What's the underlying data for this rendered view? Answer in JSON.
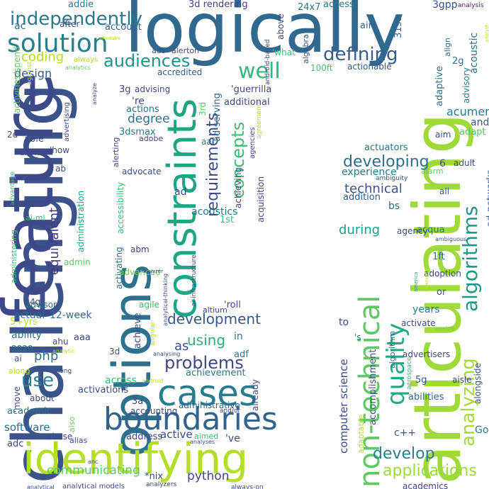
{
  "palette": {
    "dark_purple": "#440154",
    "indigo": "#46327e",
    "blue": "#365c8d",
    "teal_blue": "#277f8e",
    "teal": "#1fa187",
    "green": "#4ac16d",
    "lime": "#a0da39",
    "yellow": "#fde725"
  },
  "words": [
    {
      "text": "logically",
      "color": "#31688e"
    },
    {
      "text": "challenging",
      "color": "#3b528b"
    },
    {
      "text": "options",
      "color": "#2c728e"
    },
    {
      "text": "feature",
      "color": "#3e4989"
    },
    {
      "text": "articulating",
      "color": "#a0da39"
    },
    {
      "text": "constraints",
      "color": "#20a486"
    },
    {
      "text": "identifying",
      "color": "#b5de2b"
    },
    {
      "text": "cases",
      "color": "#287c8e"
    },
    {
      "text": "boundaries",
      "color": "#33638d"
    },
    {
      "text": "non-technical",
      "color": "#5ec962"
    },
    {
      "text": "quality",
      "color": "#22a884"
    },
    {
      "text": "algorithms",
      "color": "#1f968b"
    },
    {
      "text": "solution",
      "color": "#277f8e"
    },
    {
      "text": "independently",
      "color": "#2a788e"
    },
    {
      "text": "audiences",
      "color": "#21918c"
    },
    {
      "text": "defining",
      "color": "#365c8d"
    },
    {
      "text": "well",
      "color": "#35b779"
    },
    {
      "text": "requirements",
      "color": "#3e4a89"
    },
    {
      "text": "concepts",
      "color": "#3dbc74"
    },
    {
      "text": "problems",
      "color": "#404688"
    },
    {
      "text": "develop",
      "color": "#277f8e"
    },
    {
      "text": "analyzing",
      "color": "#a5db36"
    },
    {
      "text": "applications",
      "color": "#9bd93c"
    },
    {
      "text": "use",
      "color": "#25838e"
    },
    {
      "text": "developing",
      "color": "#2d708e"
    },
    {
      "text": "development",
      "color": "#38588c"
    },
    {
      "text": "technical",
      "color": "#3b528b"
    },
    {
      "text": "coding",
      "color": "#bddf26"
    },
    {
      "text": "design",
      "color": "#355f8d"
    },
    {
      "text": "equivalent",
      "color": "#443a83"
    },
    {
      "text": "communicating",
      "color": "#5ec962"
    },
    {
      "text": "python",
      "color": "#3e4989"
    },
    {
      "text": "software",
      "color": "#2f6c8e"
    },
    {
      "text": "php",
      "color": "#2c728e"
    },
    {
      "text": "using",
      "color": "#29af7f"
    },
    {
      "text": "degree",
      "color": "#2f6c8e"
    },
    {
      "text": "during",
      "color": "#1f9a8a"
    },
    {
      "text": "experience",
      "color": "#2a788e"
    },
    {
      "text": "computer science",
      "color": "#3e4a89"
    },
    {
      "text": "addie",
      "color": "#287d8e"
    },
    {
      "text": "coding",
      "color": "#bddf26"
    },
    {
      "text": "3d rendering",
      "color": "#414487"
    },
    {
      "text": "access",
      "color": "#2a788e"
    },
    {
      "text": "24x7",
      "color": "#2c728e"
    },
    {
      "text": "3gpp",
      "color": "#3b528b"
    },
    {
      "text": "analysis",
      "color": "#482878"
    },
    {
      "text": "ac",
      "color": "#31688e"
    },
    {
      "text": "after",
      "color": "#3e4989"
    },
    {
      "text": "account",
      "color": "#33638d"
    },
    {
      "text": "above",
      "color": "#3e4989"
    },
    {
      "text": "air",
      "color": "#2d708e"
    },
    {
      "text": "31st",
      "color": "#33638d"
    },
    {
      "text": "acoustic",
      "color": "#2c728e"
    },
    {
      "text": "accredited",
      "color": "#375a8c"
    },
    {
      "text": "ads",
      "color": "#3b528b"
    },
    {
      "text": "alerton",
      "color": "#3e4989"
    },
    {
      "text": "'what",
      "color": "#3dbc74"
    },
    {
      "text": "100ft",
      "color": "#4ac16d"
    },
    {
      "text": "actionable",
      "color": "#3a548c"
    },
    {
      "text": "2g",
      "color": "#2d708e"
    },
    {
      "text": "align",
      "color": "#2c728e"
    },
    {
      "text": "adaptive",
      "color": "#2d708e"
    },
    {
      "text": "advisory",
      "color": "#287c8e"
    },
    {
      "text": "acumen",
      "color": "#2a788e"
    },
    {
      "text": "and",
      "color": "#375a8c"
    },
    {
      "text": "adapt",
      "color": "#52c569"
    },
    {
      "text": "aim",
      "color": "#3e4989"
    },
    {
      "text": "adult",
      "color": "#3e4989"
    },
    {
      "text": "6",
      "color": "#3b528b"
    },
    {
      "text": "alarm",
      "color": "#5ec962"
    },
    {
      "text": "ambiguity",
      "color": "#3b528b"
    },
    {
      "text": "all",
      "color": "#3b528b"
    },
    {
      "text": "ad-networks",
      "color": "#3a548c"
    },
    {
      "text": "acqua",
      "color": "#2a788e"
    },
    {
      "text": "ambiguous",
      "color": "#3b528b"
    },
    {
      "text": "activities",
      "color": "#5ec962"
    },
    {
      "text": "1ft",
      "color": "#2c728e"
    },
    {
      "text": "adoption",
      "color": "#3e4989"
    },
    {
      "text": "or",
      "color": "#3b528b"
    },
    {
      "text": "america",
      "color": "#20a486"
    },
    {
      "text": "activate",
      "color": "#3e4989"
    },
    {
      "text": "analog",
      "color": "#6ece58"
    },
    {
      "text": "years",
      "color": "#2a788e"
    },
    {
      "text": "advertisers",
      "color": "#3e4989"
    },
    {
      "text": "5g",
      "color": "#3b528b"
    },
    {
      "text": "aisle",
      "color": "#414487"
    },
    {
      "text": "alongside",
      "color": "#3b528b"
    },
    {
      "text": "abilities",
      "color": "#31688e"
    },
    {
      "text": "Go",
      "color": "#2a788e"
    },
    {
      "text": "aerospace",
      "color": "#3dbc74"
    },
    {
      "text": "adaptable",
      "color": "#b5de2b"
    },
    {
      "text": "accomplishment",
      "color": "#3b528b"
    },
    {
      "text": "algorithm",
      "color": "#2c728e"
    },
    {
      "text": "c++",
      "color": "#3b528b"
    },
    {
      "text": "academics",
      "color": "#414487"
    },
    {
      "text": "'s",
      "color": "#2a788e"
    },
    {
      "text": "to",
      "color": "#3e4989"
    },
    {
      "text": "bs",
      "color": "#31688e"
    },
    {
      "text": "agency",
      "color": "#3e4989"
    },
    {
      "text": "addition",
      "color": "#365c8d"
    },
    {
      "text": "actuators",
      "color": "#2d708e"
    },
    {
      "text": "acquisition",
      "color": "#3e4989"
    },
    {
      "text": "agreements",
      "color": "#b5de2b"
    },
    {
      "text": "agencies",
      "color": "#3e4989"
    },
    {
      "text": "android-based",
      "color": "#3e4989"
    },
    {
      "text": "algebra",
      "color": "#3b528b"
    },
    {
      "text": "'guerrilla",
      "color": "#3e4989"
    },
    {
      "text": "additional",
      "color": "#3e4989"
    },
    {
      "text": "ad-serving",
      "color": "#31688e"
    },
    {
      "text": "3rd",
      "color": "#5ec962"
    },
    {
      "text": "acoustics",
      "color": "#2a788e"
    },
    {
      "text": "1st",
      "color": "#3dbc74"
    },
    {
      "text": "aac",
      "color": "#2a788e"
    },
    {
      "text": "achieving",
      "color": "#3e4989"
    },
    {
      "text": "altium",
      "color": "#3e4989"
    },
    {
      "text": "'roll",
      "color": "#3e4989"
    },
    {
      "text": "in",
      "color": "#2a788e"
    },
    {
      "text": "adf",
      "color": "#2c728e"
    },
    {
      "text": "as",
      "color": "#3b528b"
    },
    {
      "text": "already",
      "color": "#3e4989"
    },
    {
      "text": "achievement",
      "color": "#2a788e"
    },
    {
      "text": "administrative",
      "color": "#31688e"
    },
    {
      "text": "and/or",
      "color": "#3e4989"
    },
    {
      "text": "aimed",
      "color": "#3dbc74"
    },
    {
      "text": "analyses",
      "color": "#3e4989"
    },
    {
      "text": "always-on",
      "color": "#3e4989"
    },
    {
      "text": "'ve",
      "color": "#3e4989"
    },
    {
      "text": "ai-infrastructure",
      "color": "#3e4989"
    },
    {
      "text": "analytical-thinking",
      "color": "#3e4989"
    },
    {
      "text": "'re",
      "color": "#3e4989"
    },
    {
      "text": "3g",
      "color": "#3e4989"
    },
    {
      "text": "advising",
      "color": "#3e4989"
    },
    {
      "text": "actions",
      "color": "#2c728e"
    },
    {
      "text": "adobe",
      "color": "#3e4989"
    },
    {
      "text": "alerting",
      "color": "#3e4989"
    },
    {
      "text": "3dsmax",
      "color": "#2a788e"
    },
    {
      "text": "advocate",
      "color": "#3e4989"
    },
    {
      "text": "ad",
      "color": "#3e4989"
    },
    {
      "text": "abm",
      "color": "#3e4989"
    },
    {
      "text": "activating",
      "color": "#2c728e"
    },
    {
      "text": "accessibility",
      "color": "#3dbc74"
    },
    {
      "text": "administration",
      "color": "#20a486"
    },
    {
      "text": "advanced",
      "color": "#6ece58"
    },
    {
      "text": "admin",
      "color": "#5ec962"
    },
    {
      "text": "agile",
      "color": "#3dbc74"
    },
    {
      "text": "achieve",
      "color": "#3e4989"
    },
    {
      "text": "advisor",
      "color": "#2c728e"
    },
    {
      "text": "12-week",
      "color": "#2c728e"
    },
    {
      "text": "actual",
      "color": "#2c728e"
    },
    {
      "text": "4g",
      "color": "#3e4989"
    },
    {
      "text": "5+yrs",
      "color": "#b5de2b"
    },
    {
      "text": "ability",
      "color": "#2c728e"
    },
    {
      "text": "aaa",
      "color": "#3e4989"
    },
    {
      "text": "ahu",
      "color": "#3e4989"
    },
    {
      "text": "2020",
      "color": "#2c728e"
    },
    {
      "text": "analytic",
      "color": "#b5de2b"
    },
    {
      "text": "ai",
      "color": "#3e4989"
    },
    {
      "text": "along",
      "color": "#b5de2b"
    },
    {
      "text": "'move",
      "color": "#3e4989"
    },
    {
      "text": "about",
      "color": "#3e4989"
    },
    {
      "text": "academic",
      "color": "#2c728e"
    },
    {
      "text": "abuse",
      "color": "#3e4989"
    },
    {
      "text": "alias",
      "color": "#3e4989"
    },
    {
      "text": "adc",
      "color": "#3e4989"
    },
    {
      "text": "analytical",
      "color": "#3e4989"
    },
    {
      "text": "analytical models",
      "color": "#3e4989"
    },
    {
      "text": "angular",
      "color": "#b5de2b"
    },
    {
      "text": "analysing",
      "color": "#3e4989"
    },
    {
      "text": "among",
      "color": "#3e4989"
    },
    {
      "text": "also",
      "color": "#6ece58"
    },
    {
      "text": "anc",
      "color": "#3e4989"
    },
    {
      "text": "analyzers",
      "color": "#3e4989"
    },
    {
      "text": "*nix",
      "color": "#3e4989"
    },
    {
      "text": "accounting",
      "color": "#3e4989"
    },
    {
      "text": "address",
      "color": "#3e4989"
    },
    {
      "text": "active",
      "color": "#3e4989"
    },
    {
      "text": "3a",
      "color": "#3e4989"
    },
    {
      "text": "across",
      "color": "#3dbc74"
    },
    {
      "text": "activations",
      "color": "#3e4989"
    },
    {
      "text": "3d",
      "color": "#3e4989"
    },
    {
      "text": "android",
      "color": "#b5de2b"
    },
    {
      "text": "allows",
      "color": "#3e4989"
    },
    {
      "text": "able",
      "color": "#3e4989"
    },
    {
      "text": "2d",
      "color": "#3e4989"
    },
    {
      "text": "advantage",
      "color": "#3dbc74"
    },
    {
      "text": "'how",
      "color": "#3e4989"
    },
    {
      "text": "ab",
      "color": "#3e4989"
    },
    {
      "text": "ai-ml",
      "color": "#3dbc74"
    },
    {
      "text": "administering",
      "color": "#3dbc74"
    },
    {
      "text": "advertising",
      "color": "#3e4989"
    },
    {
      "text": "a",
      "color": "#3e4989"
    },
    {
      "text": "analyze",
      "color": "#3e4989"
    },
    {
      "text": "against",
      "color": "#b5de2b"
    },
    {
      "text": "activities/spend",
      "color": "#5ec962"
    },
    {
      "text": "analytics",
      "color": "#5ec962"
    },
    {
      "text": "always",
      "color": "#b5de2b"
    },
    {
      "text": "analyst",
      "color": "#b5de2b"
    },
    {
      "text": "adversarial",
      "color": "#b5de2b"
    },
    {
      "text": "analyzer",
      "color": "#3e4989"
    },
    {
      "text": "affordable",
      "color": "#b5de2b"
    }
  ]
}
